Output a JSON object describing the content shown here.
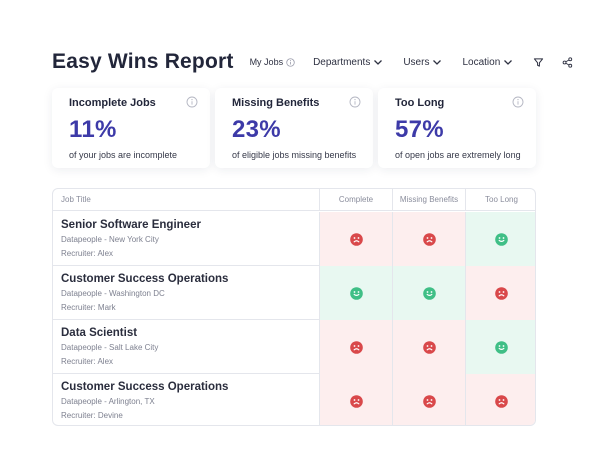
{
  "header": {
    "title": "Easy Wins Report",
    "my_jobs_label": "My Jobs",
    "filters": [
      "Departments",
      "Users",
      "Location"
    ]
  },
  "cards": [
    {
      "title": "Incomplete Jobs",
      "value": "11%",
      "description": "of your jobs are incomplete"
    },
    {
      "title": "Missing Benefits",
      "value": "23%",
      "description": "of eligible jobs missing benefits"
    },
    {
      "title": "Too Long",
      "value": "57%",
      "description": "of open jobs are extremely long"
    }
  ],
  "table": {
    "columns": [
      "Job Title",
      "Complete",
      "Missing Benefits",
      "Too Long"
    ],
    "rows": [
      {
        "title": "Senior Software Engineer",
        "location": "Datapeople - New York City",
        "recruiter": "Recruiter: Alex",
        "statuses": [
          "bad",
          "bad",
          "good"
        ]
      },
      {
        "title": "Customer Success Operations",
        "location": "Datapeople - Washington DC",
        "recruiter": "Recruiter: Mark",
        "statuses": [
          "good",
          "good",
          "bad"
        ]
      },
      {
        "title": "Data Scientist",
        "location": "Datapeople - Salt Lake City",
        "recruiter": "Recruiter: Alex",
        "statuses": [
          "bad",
          "bad",
          "good"
        ]
      },
      {
        "title": "Customer Success Operations",
        "location": "Datapeople - Arlington, TX",
        "recruiter": "Recruiter: Devine",
        "statuses": [
          "bad",
          "bad",
          "bad"
        ]
      }
    ]
  },
  "colors": {
    "accent": "#3d3aa8",
    "good_face": "#3fbf86",
    "bad_face": "#d9484a",
    "good_bg": "#e8f8f1",
    "bad_bg": "#fdeeee"
  }
}
